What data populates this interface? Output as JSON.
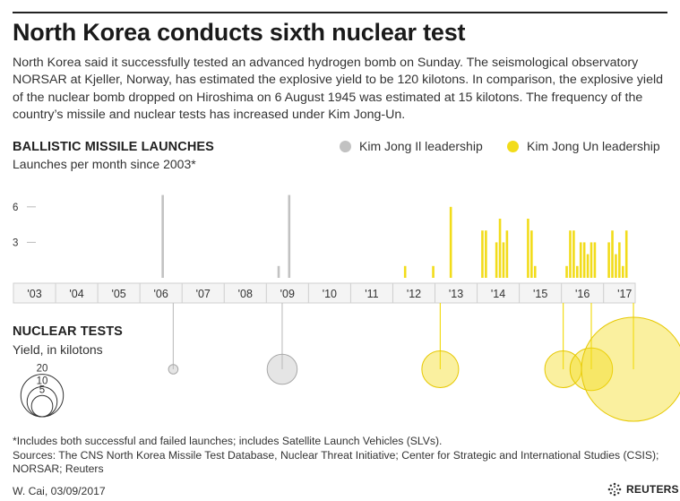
{
  "header": {
    "title": "North Korea conducts sixth nuclear test",
    "intro": "North Korea said it successfully tested an advanced hydrogen bomb on Sunday. The seismological observatory NORSAR at Kjeller, Norway, has estimated the explosive yield to be 120 kilotons. In comparison, the explosive yield of the nuclear bomb dropped on Hiroshima on 6 August 1945 was estimated at 15 kilotons. The frequency of the country’s missile and nuclear tests has increased under Kim Jong-Un."
  },
  "missiles": {
    "title": "BALLISTIC MISSILE LAUNCHES",
    "subtitle": "Launches per month since 2003*"
  },
  "legend": {
    "kim_jong_il": {
      "label": "Kim Jong Il leadership",
      "color": "#c2c2c2"
    },
    "kim_jong_un": {
      "label": "Kim Jong Un leadership",
      "color": "#f2dc1a"
    }
  },
  "nuclear": {
    "title": "NUCLEAR TESTS",
    "subtitle": "Yield, in kilotons"
  },
  "footer": {
    "footnote": "*Includes both successful and failed launches; includes Satellite Launch Vehicles (SLVs).",
    "sources": "Sources: The CNS North Korea Missile Test Database, Nuclear Threat Initiative; Center for Strategic and International Studies (CSIS); NORSAR; Reuters",
    "credit": "W. Cai,  03/09/2017",
    "logo_text": "REUTERS",
    "logo_icon": "reuters-dots-icon"
  },
  "chart_data": [
    {
      "type": "bar",
      "title": "BALLISTIC MISSILE LAUNCHES",
      "subtitle": "Launches per month since 2003*",
      "x_start": "2003-01",
      "x_end": "2017-09",
      "x_tick_labels": [
        "'03",
        "'04",
        "'05",
        "'06",
        "'07",
        "'08",
        "'09",
        "'10",
        "'11",
        "'12",
        "'13",
        "'14",
        "'15",
        "'16",
        "'17"
      ],
      "y_ticks": [
        3,
        6
      ],
      "ylim": [
        0,
        10
      ],
      "grid": false,
      "legend_position": "top-right",
      "series": [
        {
          "name": "Kim Jong Il leadership",
          "color": "#c2c2c2",
          "points": [
            {
              "month": "2006-07",
              "value": 7
            },
            {
              "month": "2009-04",
              "value": 1
            },
            {
              "month": "2009-07",
              "value": 7
            }
          ]
        },
        {
          "name": "Kim Jong Un leadership",
          "color": "#f2dc1a",
          "points": [
            {
              "month": "2012-04",
              "value": 1
            },
            {
              "month": "2012-12",
              "value": 1
            },
            {
              "month": "2013-05",
              "value": 6
            },
            {
              "month": "2014-02",
              "value": 4
            },
            {
              "month": "2014-03",
              "value": 4
            },
            {
              "month": "2014-06",
              "value": 3
            },
            {
              "month": "2014-07",
              "value": 5
            },
            {
              "month": "2014-08",
              "value": 3
            },
            {
              "month": "2014-09",
              "value": 4
            },
            {
              "month": "2015-03",
              "value": 5
            },
            {
              "month": "2015-04",
              "value": 4
            },
            {
              "month": "2015-05",
              "value": 1
            },
            {
              "month": "2016-02",
              "value": 1
            },
            {
              "month": "2016-03",
              "value": 4
            },
            {
              "month": "2016-04",
              "value": 4
            },
            {
              "month": "2016-05",
              "value": 1
            },
            {
              "month": "2016-06",
              "value": 3
            },
            {
              "month": "2016-07",
              "value": 3
            },
            {
              "month": "2016-08",
              "value": 2
            },
            {
              "month": "2016-09",
              "value": 3
            },
            {
              "month": "2016-10",
              "value": 3
            },
            {
              "month": "2017-02",
              "value": 3
            },
            {
              "month": "2017-03",
              "value": 4
            },
            {
              "month": "2017-04",
              "value": 2
            },
            {
              "month": "2017-05",
              "value": 3
            },
            {
              "month": "2017-06",
              "value": 1
            },
            {
              "month": "2017-07",
              "value": 4
            }
          ]
        }
      ]
    },
    {
      "type": "scatter",
      "title": "NUCLEAR TESTS",
      "subtitle": "Yield, in kilotons",
      "size_legend": [
        20,
        10,
        5
      ],
      "series": [
        {
          "name": "Kim Jong Il leadership",
          "color": "#c2c2c2",
          "points": [
            {
              "month": "2006-10",
              "yield_kt": 1
            },
            {
              "month": "2009-05",
              "yield_kt": 10
            }
          ]
        },
        {
          "name": "Kim Jong Un leadership",
          "color": "#f2dc1a",
          "points": [
            {
              "month": "2013-02",
              "yield_kt": 15
            },
            {
              "month": "2016-01",
              "yield_kt": 15
            },
            {
              "month": "2016-09",
              "yield_kt": 20
            },
            {
              "month": "2017-09",
              "yield_kt": 120
            }
          ]
        }
      ]
    }
  ]
}
